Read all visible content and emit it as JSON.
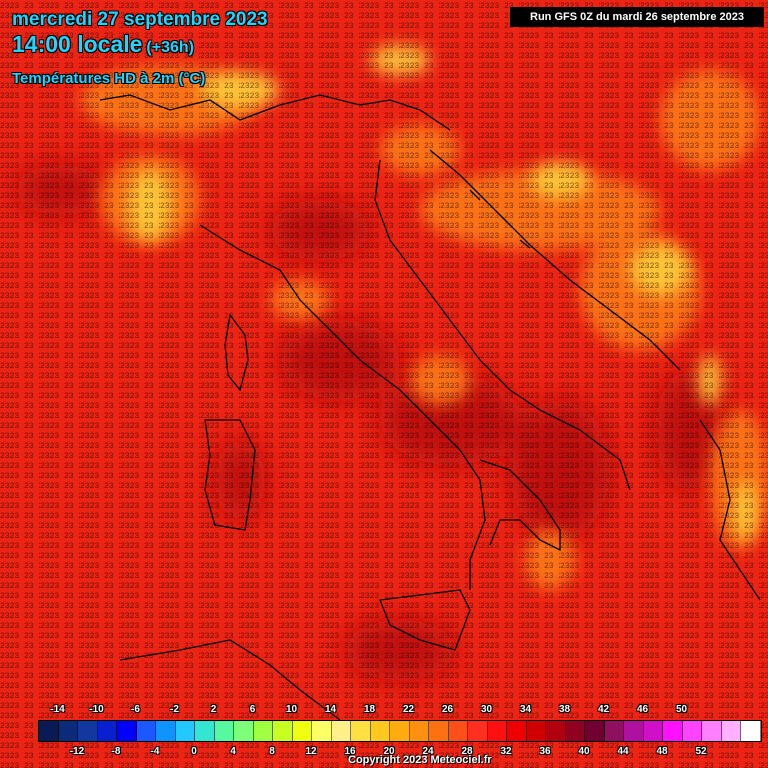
{
  "header": {
    "date_line": "mercredi 27 septembre 2023",
    "time_line": "14:00 locale",
    "offset": "(+36h)",
    "parameter": "Températures HD à 2m (°C)",
    "run_info": "Run GFS 0Z du mardi 26 septembre 2023"
  },
  "legend": {
    "top_labels": [
      "-14",
      "-10",
      "-6",
      "-2",
      "2",
      "6",
      "10",
      "14",
      "18",
      "22",
      "26",
      "30",
      "34",
      "38",
      "42",
      "46",
      "50"
    ],
    "bottom_labels": [
      "-12",
      "-8",
      "-4",
      "0",
      "4",
      "8",
      "12",
      "16",
      "20",
      "24",
      "28",
      "32",
      "36",
      "40",
      "44",
      "48",
      "52"
    ],
    "colors": [
      "#0a1a55",
      "#0c2a7a",
      "#12379e",
      "#0a1fd0",
      "#0000ff",
      "#1c58ff",
      "#0f94ff",
      "#22c8ff",
      "#34e6d0",
      "#58f8a0",
      "#7dff7a",
      "#a0ff40",
      "#c8ff20",
      "#f0ff10",
      "#ffff66",
      "#fff08a",
      "#ffe040",
      "#ffc81e",
      "#ffac10",
      "#ff9010",
      "#ff7010",
      "#ff5018",
      "#ff3020",
      "#ff1010",
      "#ee0000",
      "#d00000",
      "#b00010",
      "#900020",
      "#700030",
      "#901060",
      "#b010a0",
      "#d010c8",
      "#ff10ff",
      "#ff44ff",
      "#ff80ff",
      "#ffb0ff",
      "#ffffff"
    ]
  },
  "map": {
    "region": "Italy and central Mediterranean",
    "variable": "2m temperature",
    "grid_value_samples": [
      "20",
      "21",
      "22",
      "23",
      "24",
      "25",
      "26",
      "27",
      "28",
      "19",
      "18",
      "17",
      "16",
      "15"
    ],
    "colors": {
      "warm": "#f02414",
      "hot": "#c4100c",
      "mild": "#ff8c1c",
      "cool": "#ffd23c",
      "line": "#000000"
    }
  },
  "copyright": "Copyright 2023 Meteociel.fr"
}
